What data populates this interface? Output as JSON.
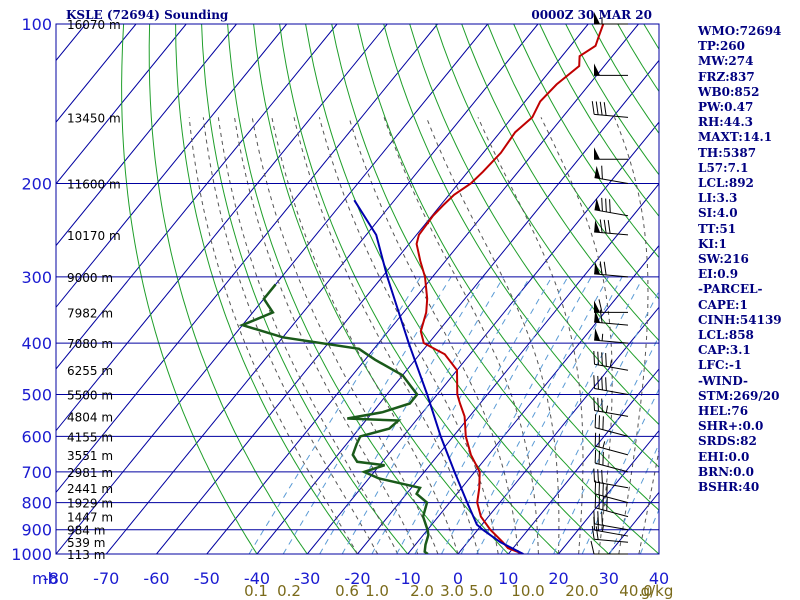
{
  "title_left": "KSLE (72694) Sounding",
  "title_right": "0000Z 30 MAR 20",
  "stats": [
    "WMO:72694",
    "TP:260",
    "MW:274",
    "FRZ:837",
    "WB0:852",
    "PW:0.47",
    "RH:44.3",
    "MAXT:14.1",
    "TH:5387",
    "L57:7.1",
    "LCL:892",
    "LI:3.3",
    "SI:4.0",
    "TT:51",
    "KI:1",
    "SW:216",
    "EI:0.9",
    "-PARCEL-",
    "CAPE:1",
    "CINH:54139",
    "LCL:858",
    "CAP:3.1",
    "LFC:-1",
    "-WIND-",
    "STM:269/20",
    "HEL:76",
    "SHR+:0.0",
    "SRDS:82",
    "EHI:0.0",
    "BRN:0.0",
    "BSHR:40"
  ],
  "colors": {
    "grid": "#0000a0",
    "isotherm": "#0000a0",
    "dry_adiabat": "#1f9e2a",
    "moist_adiabat": "#555555",
    "mixing_ratio": "#5b9bd5",
    "temperature": "#c00000",
    "dewpoint": "#1a5a1a",
    "parcel": "#0000b0",
    "wind_barb": "#000000",
    "stats_text": "#000080"
  },
  "chart_data": {
    "type": "skew-t",
    "title": "KSLE (72694) Sounding",
    "xlabel": "",
    "ylabel": "mb",
    "y_axis": {
      "label": "mb",
      "log_scale": true,
      "reversed": true,
      "ylim": [
        1000,
        100
      ],
      "ticks": [
        "100",
        "200",
        "300",
        "400",
        "500",
        "600",
        "700",
        "800",
        "900",
        "1000"
      ]
    },
    "x_axis": {
      "xlim": [
        -80,
        40
      ],
      "ticks": [
        "-80",
        "-70",
        "-60",
        "-50",
        "-40",
        "-30",
        "-20",
        "-10",
        "0",
        "10",
        "20",
        "30",
        "40"
      ]
    },
    "mixing_ratio_labels": [
      "0.1",
      "0.2",
      "0.6",
      "1.0",
      "2.0",
      "3.0",
      "5.0",
      "10.0",
      "20.0",
      "40.0",
      "g/kg"
    ],
    "height_labels": [
      {
        "p": 1000,
        "text": "113 m"
      },
      {
        "p": 950,
        "text": "539 m"
      },
      {
        "p": 900,
        "text": "984 m"
      },
      {
        "p": 850,
        "text": "1447 m"
      },
      {
        "p": 800,
        "text": "1929 m"
      },
      {
        "p": 750,
        "text": "2441 m"
      },
      {
        "p": 700,
        "text": "2981 m"
      },
      {
        "p": 650,
        "text": "3551 m"
      },
      {
        "p": 600,
        "text": "4155 m"
      },
      {
        "p": 550,
        "text": "4804 m"
      },
      {
        "p": 500,
        "text": "5500 m"
      },
      {
        "p": 450,
        "text": "6255 m"
      },
      {
        "p": 400,
        "text": "7080 m"
      },
      {
        "p": 350,
        "text": "7982 m"
      },
      {
        "p": 300,
        "text": "9000 m"
      },
      {
        "p": 250,
        "text": "10170 m"
      },
      {
        "p": 200,
        "text": "11600 m"
      },
      {
        "p": 150,
        "text": "13450 m"
      },
      {
        "p": 100,
        "text": "16070 m"
      }
    ],
    "series": [
      {
        "key": "temperature",
        "values": [
          [
            1000,
            13.0
          ],
          [
            975,
            9.0
          ],
          [
            950,
            7.0
          ],
          [
            925,
            4.8
          ],
          [
            900,
            2.5
          ],
          [
            850,
            -1.5
          ],
          [
            800,
            -4.5
          ],
          [
            750,
            -6.5
          ],
          [
            700,
            -9.0
          ],
          [
            650,
            -13.5
          ],
          [
            600,
            -17.5
          ],
          [
            550,
            -21.0
          ],
          [
            520,
            -24.0
          ],
          [
            500,
            -26.0
          ],
          [
            450,
            -30.0
          ],
          [
            420,
            -35.0
          ],
          [
            400,
            -41.0
          ],
          [
            380,
            -43.5
          ],
          [
            350,
            -45.5
          ],
          [
            330,
            -47.5
          ],
          [
            300,
            -51.5
          ],
          [
            280,
            -55.0
          ],
          [
            260,
            -58.5
          ],
          [
            250,
            -59.5
          ],
          [
            230,
            -59.8
          ],
          [
            220,
            -59.5
          ],
          [
            210,
            -59.0
          ],
          [
            200,
            -57.5
          ],
          [
            190,
            -57.0
          ],
          [
            175,
            -56.5
          ],
          [
            160,
            -57.0
          ],
          [
            150,
            -56.0
          ],
          [
            140,
            -57.0
          ],
          [
            130,
            -56.5
          ],
          [
            120,
            -55.0
          ],
          [
            115,
            -56.5
          ],
          [
            110,
            -55.0
          ],
          [
            105,
            -56.0
          ],
          [
            100,
            -57.0
          ]
        ]
      },
      {
        "key": "dewpoint",
        "values": [
          [
            1000,
            -6.0
          ],
          [
            990,
            -7.0
          ],
          [
            960,
            -8.0
          ],
          [
            920,
            -9.0
          ],
          [
            900,
            -10.0
          ],
          [
            850,
            -13.0
          ],
          [
            800,
            -14.5
          ],
          [
            770,
            -18.0
          ],
          [
            750,
            -18.3
          ],
          [
            720,
            -28.0
          ],
          [
            705,
            -31.0
          ],
          [
            700,
            -32.0
          ],
          [
            680,
            -29.0
          ],
          [
            670,
            -35.0
          ],
          [
            650,
            -37.0
          ],
          [
            620,
            -38.0
          ],
          [
            600,
            -38.5
          ],
          [
            580,
            -34.0
          ],
          [
            560,
            -33.5
          ],
          [
            555,
            -44.0
          ],
          [
            540,
            -38.0
          ],
          [
            520,
            -34.0
          ],
          [
            500,
            -34.0
          ],
          [
            460,
            -40.0
          ],
          [
            430,
            -48.0
          ],
          [
            410,
            -53.0
          ],
          [
            390,
            -70.0
          ],
          [
            370,
            -80.0
          ],
          [
            360,
            -78.0
          ],
          [
            350,
            -76.0
          ],
          [
            330,
            -80.0
          ],
          [
            310,
            -80.0
          ]
        ]
      },
      {
        "key": "parcel",
        "values": [
          [
            1000,
            13.0
          ],
          [
            950,
            6.5
          ],
          [
            900,
            1.0
          ],
          [
            880,
            -1.0
          ],
          [
            850,
            -3.0
          ],
          [
            800,
            -6.5
          ],
          [
            700,
            -14.0
          ],
          [
            600,
            -22.5
          ],
          [
            500,
            -32.0
          ],
          [
            400,
            -44.0
          ],
          [
            300,
            -59.0
          ],
          [
            250,
            -68.0
          ],
          [
            215,
            -78.0
          ]
        ]
      }
    ],
    "wind_barbs": [
      {
        "p": 1000,
        "dir": 270,
        "spd": 10
      },
      {
        "p": 950,
        "dir": 275,
        "spd": 20
      },
      {
        "p": 925,
        "dir": 280,
        "spd": 25
      },
      {
        "p": 900,
        "dir": 280,
        "spd": 30
      },
      {
        "p": 850,
        "dir": 285,
        "spd": 40
      },
      {
        "p": 800,
        "dir": 285,
        "spd": 40
      },
      {
        "p": 750,
        "dir": 280,
        "spd": 30
      },
      {
        "p": 700,
        "dir": 285,
        "spd": 30
      },
      {
        "p": 650,
        "dir": 285,
        "spd": 25
      },
      {
        "p": 600,
        "dir": 285,
        "spd": 30
      },
      {
        "p": 550,
        "dir": 280,
        "spd": 35
      },
      {
        "p": 500,
        "dir": 280,
        "spd": 40
      },
      {
        "p": 450,
        "dir": 280,
        "spd": 45
      },
      {
        "p": 400,
        "dir": 275,
        "spd": 55
      },
      {
        "p": 370,
        "dir": 275,
        "spd": 60
      },
      {
        "p": 350,
        "dir": 270,
        "spd": 60
      },
      {
        "p": 300,
        "dir": 275,
        "spd": 70
      },
      {
        "p": 250,
        "dir": 275,
        "spd": 80
      },
      {
        "p": 230,
        "dir": 280,
        "spd": 80
      },
      {
        "p": 200,
        "dir": 280,
        "spd": 60
      },
      {
        "p": 180,
        "dir": 270,
        "spd": 50
      },
      {
        "p": 150,
        "dir": 275,
        "spd": 40
      },
      {
        "p": 125,
        "dir": 270,
        "spd": 50
      },
      {
        "p": 100,
        "dir": 270,
        "spd": 55
      }
    ]
  }
}
